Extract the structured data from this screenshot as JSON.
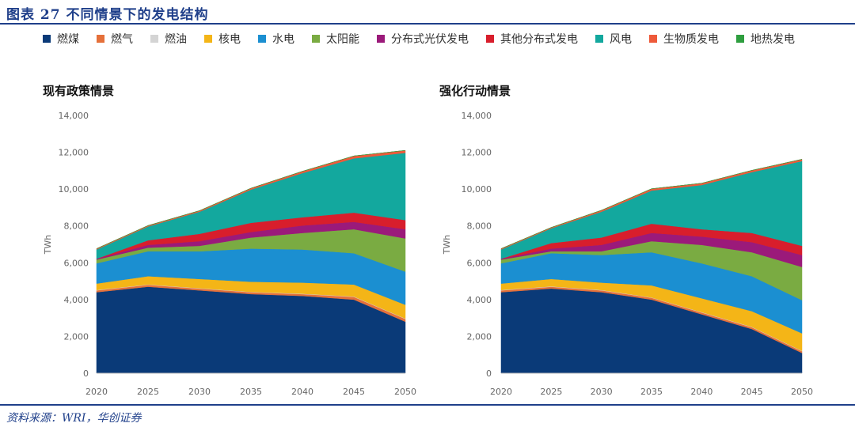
{
  "header": {
    "title": "图表 27    不同情景下的发电结构"
  },
  "footer": {
    "source": "资料来源：WRI，华创证券"
  },
  "legend": [
    {
      "name": "燃煤",
      "color": "#0a3a78"
    },
    {
      "name": "燃气",
      "color": "#e5703a"
    },
    {
      "name": "燃油",
      "color": "#d4d4d4"
    },
    {
      "name": "核电",
      "color": "#f4b517"
    },
    {
      "name": "水电",
      "color": "#1b8fd1"
    },
    {
      "name": "太阳能",
      "color": "#7aab42"
    },
    {
      "name": "分布式光伏发电",
      "color": "#9b1a7a"
    },
    {
      "name": "其他分布式发电",
      "color": "#d81e2c"
    },
    {
      "name": "风电",
      "color": "#13a89e"
    },
    {
      "name": "生物质发电",
      "color": "#ee5a3a"
    },
    {
      "name": "地热发电",
      "color": "#2e9e3f"
    }
  ],
  "chart_data": [
    {
      "type": "area",
      "title": "现有政策情景",
      "xlabel": "",
      "ylabel": "TWh",
      "x": [
        2020,
        2025,
        2030,
        2035,
        2040,
        2045,
        2050
      ],
      "xticks": [
        "2020",
        "2025",
        "2030",
        "2035",
        "2040",
        "2045",
        "2050"
      ],
      "ylim": [
        0,
        14000
      ],
      "yticks": [
        "0",
        "2,000",
        "4,000",
        "6,000",
        "8,000",
        "10,000",
        "12,000",
        "14,000"
      ],
      "stacked": true,
      "series": [
        {
          "name": "燃煤",
          "values": [
            4400,
            4700,
            4500,
            4300,
            4200,
            4000,
            2800
          ]
        },
        {
          "name": "燃气",
          "values": [
            100,
            100,
            100,
            100,
            100,
            150,
            150
          ]
        },
        {
          "name": "燃油",
          "values": [
            20,
            20,
            20,
            20,
            20,
            20,
            20
          ]
        },
        {
          "name": "核电",
          "values": [
            350,
            450,
            500,
            550,
            600,
            650,
            750
          ]
        },
        {
          "name": "水电",
          "values": [
            1100,
            1350,
            1500,
            1800,
            1800,
            1700,
            1800
          ]
        },
        {
          "name": "太阳能",
          "values": [
            200,
            200,
            300,
            600,
            900,
            1300,
            1800
          ]
        },
        {
          "name": "分布式光伏发电",
          "values": [
            50,
            150,
            250,
            300,
            400,
            400,
            500
          ]
        },
        {
          "name": "其他分布式发电",
          "values": [
            0,
            250,
            400,
            500,
            450,
            500,
            500
          ]
        },
        {
          "name": "风电",
          "values": [
            500,
            750,
            1200,
            1800,
            2400,
            2950,
            3650
          ]
        },
        {
          "name": "生物质发电",
          "values": [
            50,
            50,
            60,
            80,
            100,
            130,
            130
          ]
        },
        {
          "name": "地热发电",
          "values": [
            0,
            0,
            0,
            0,
            0,
            0,
            0
          ]
        }
      ],
      "grid": false
    },
    {
      "type": "area",
      "title": "强化行动情景",
      "xlabel": "",
      "ylabel": "TWh",
      "x": [
        2020,
        2025,
        2030,
        2035,
        2040,
        2045,
        2050
      ],
      "xticks": [
        "2020",
        "2025",
        "2030",
        "2035",
        "2040",
        "2045",
        "2050"
      ],
      "ylim": [
        0,
        14000
      ],
      "yticks": [
        "0",
        "2,000",
        "4,000",
        "6,000",
        "8,000",
        "10,000",
        "12,000",
        "14,000"
      ],
      "stacked": true,
      "series": [
        {
          "name": "燃煤",
          "values": [
            4400,
            4600,
            4400,
            4000,
            3200,
            2400,
            1100
          ]
        },
        {
          "name": "燃气",
          "values": [
            100,
            100,
            100,
            100,
            100,
            100,
            100
          ]
        },
        {
          "name": "燃油",
          "values": [
            20,
            20,
            20,
            20,
            20,
            20,
            20
          ]
        },
        {
          "name": "核电",
          "values": [
            350,
            400,
            400,
            650,
            750,
            850,
            950
          ]
        },
        {
          "name": "水电",
          "values": [
            1100,
            1400,
            1500,
            1800,
            1900,
            1900,
            1800
          ]
        },
        {
          "name": "太阳能",
          "values": [
            200,
            100,
            200,
            600,
            1000,
            1300,
            1800
          ]
        },
        {
          "name": "分布式光伏发电",
          "values": [
            50,
            150,
            350,
            450,
            450,
            550,
            650
          ]
        },
        {
          "name": "其他分布式发电",
          "values": [
            0,
            300,
            400,
            500,
            400,
            500,
            500
          ]
        },
        {
          "name": "风电",
          "values": [
            500,
            800,
            1400,
            1800,
            2400,
            3300,
            4600
          ]
        },
        {
          "name": "生物质发电",
          "values": [
            50,
            50,
            80,
            100,
            100,
            100,
            100
          ]
        },
        {
          "name": "地热发电",
          "values": [
            0,
            0,
            0,
            0,
            0,
            0,
            0
          ]
        }
      ],
      "grid": false
    }
  ]
}
